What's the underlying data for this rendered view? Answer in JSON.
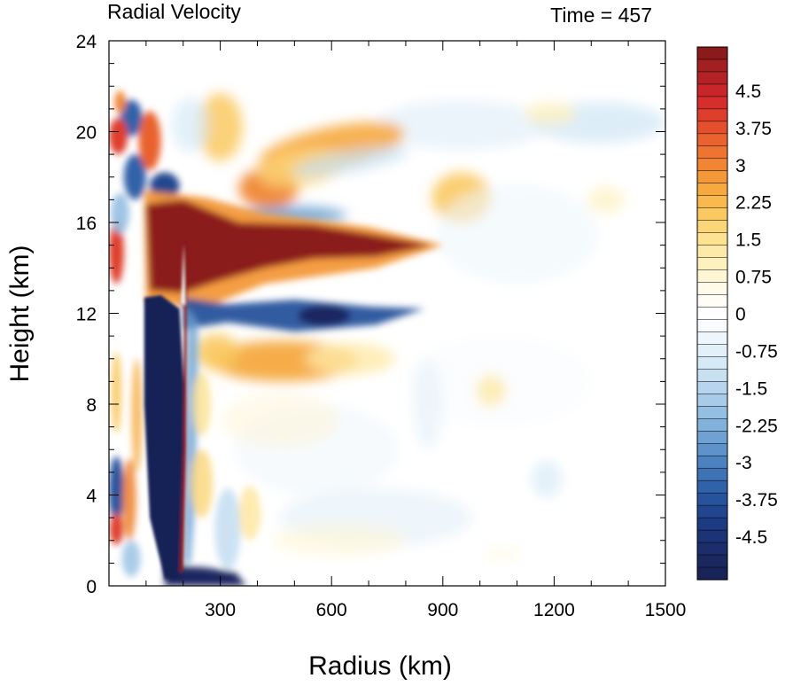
{
  "chart_data": {
    "type": "heatmap",
    "title": "Radial Velocity",
    "time_label": "Time = 457",
    "xlabel": "Radius (km)",
    "ylabel": "Height (km)",
    "xlim": [
      0,
      1500
    ],
    "ylim": [
      0,
      24
    ],
    "x_ticks": [
      300,
      600,
      900,
      1200,
      1500
    ],
    "y_ticks": [
      0,
      4,
      8,
      12,
      16,
      20,
      24
    ],
    "colorbar": {
      "labels": [
        "4.5",
        "3.75",
        "3",
        "2.25",
        "1.5",
        "0.75",
        "0",
        "-0.75",
        "-1.5",
        "-2.25",
        "-3",
        "-3.75",
        "-4.5"
      ],
      "label_values": [
        4.5,
        3.75,
        3,
        2.25,
        1.5,
        0.75,
        0,
        -0.75,
        -1.5,
        -2.25,
        -3,
        -3.75,
        -4.5
      ],
      "levels_top_to_bottom": [
        5.25,
        5,
        4.75,
        4.5,
        4.25,
        4,
        3.75,
        3.5,
        3.25,
        3,
        2.75,
        2.5,
        2.25,
        2,
        1.75,
        1.5,
        1.25,
        1,
        0.75,
        0.5,
        0.25,
        0,
        -0.25,
        -0.5,
        -0.75,
        -1,
        -1.25,
        -1.5,
        -1.75,
        -2,
        -2.25,
        -2.5,
        -2.75,
        -3,
        -3.25,
        -3.5,
        -3.75,
        -4,
        -4.25,
        -4.5,
        -4.75,
        -5,
        -5.25
      ],
      "colors_top_to_bottom": [
        "#8b1a1a",
        "#a21f22",
        "#b52226",
        "#c9262a",
        "#d52e2c",
        "#de3e2c",
        "#e4502d",
        "#e9622f",
        "#ed7431",
        "#f08634",
        "#f39838",
        "#f6a93e",
        "#f8ba4e",
        "#fac962",
        "#fbd678",
        "#fde290",
        "#feeaa8",
        "#fef1c0",
        "#fff6d6",
        "#fffaea",
        "#fffdf6",
        "#ffffff",
        "#f9fcfe",
        "#eef6fc",
        "#e2f0f9",
        "#d5e9f6",
        "#c7e0f2",
        "#b7d6ee",
        "#a7cbe8",
        "#95bfe2",
        "#82b1db",
        "#6fa2d3",
        "#5d93ca",
        "#4c82c0",
        "#3d72b5",
        "#3062a9",
        "#27539c",
        "#21468f",
        "#1d3b82",
        "#1c3376",
        "#1b2d6a",
        "#1a2860",
        "#182457"
      ]
    },
    "features": [
      {
        "name": "upper-level outflow jet",
        "sign": "positive",
        "max": 5.25,
        "x_range": [
          100,
          900
        ],
        "height_range": [
          13,
          16.5
        ]
      },
      {
        "name": "mid-level inflow band",
        "sign": "negative",
        "min": -4.5,
        "x_range": [
          200,
          850
        ],
        "height_range": [
          11,
          12.5
        ]
      },
      {
        "name": "eyewall inflow core",
        "sign": "negative",
        "min": -5.25,
        "x_range": [
          90,
          200
        ],
        "height_range": [
          0,
          12.5
        ]
      },
      {
        "name": "boundary-layer inflow",
        "sign": "negative",
        "min": -5,
        "x_range": [
          150,
          350
        ],
        "height_range": [
          0,
          0.7
        ]
      },
      {
        "name": "eyewall outflow strip",
        "sign": "positive",
        "max": 5.25,
        "x_range": [
          170,
          210
        ],
        "height_range": [
          0,
          15.5
        ]
      }
    ]
  }
}
